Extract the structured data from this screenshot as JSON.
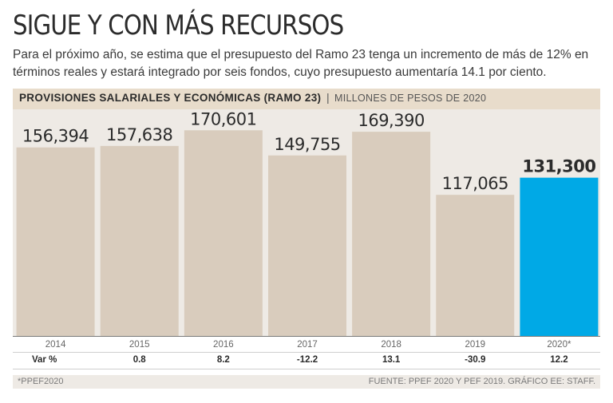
{
  "header": {
    "title": "SIGUE Y CON MÁS RECURSOS",
    "subtitle": "Para el próximo año, se estima que el presupuesto del Ramo 23 tenga un incremento de más de 12% en términos reales y estará integrado por seis fondos, cuyo presupuesto aumentaría 14.1 por ciento."
  },
  "band": {
    "bold": "PROVISIONES SALARIALES Y ECONÓMICAS (RAMO 23)",
    "separator": "|",
    "light": "MILLONES DE PESOS DE 2020"
  },
  "chart_data": {
    "type": "bar",
    "title": "PROVISIONES SALARIALES Y ECONÓMICAS (RAMO 23)",
    "ylabel": "MILLONES DE PESOS DE 2020",
    "xlabel": "",
    "categories": [
      "2014",
      "2015",
      "2016",
      "2017",
      "2018",
      "2019",
      "2020*"
    ],
    "values": [
      156394,
      157638,
      170601,
      149755,
      169390,
      117065,
      131300
    ],
    "value_labels": [
      "156,394",
      "157,638",
      "170,601",
      "149,755",
      "169,390",
      "117,065",
      "131,300"
    ],
    "highlight_index": 6,
    "ylim": [
      0,
      188000
    ],
    "grid": false,
    "colors": {
      "bar": "#d9ccbd",
      "highlight": "#00a9e6",
      "plot_bg": "#eeeae5"
    }
  },
  "variation": {
    "label": "Var %",
    "values": [
      "",
      "0.8",
      "8.2",
      "-12.2",
      "13.1",
      "-30.9",
      "12.2"
    ]
  },
  "footer": {
    "note": "*PPEF2020",
    "source": "FUENTE: PPEF 2020 Y PEF 2019. GRÁFICO EE: STAFF."
  }
}
